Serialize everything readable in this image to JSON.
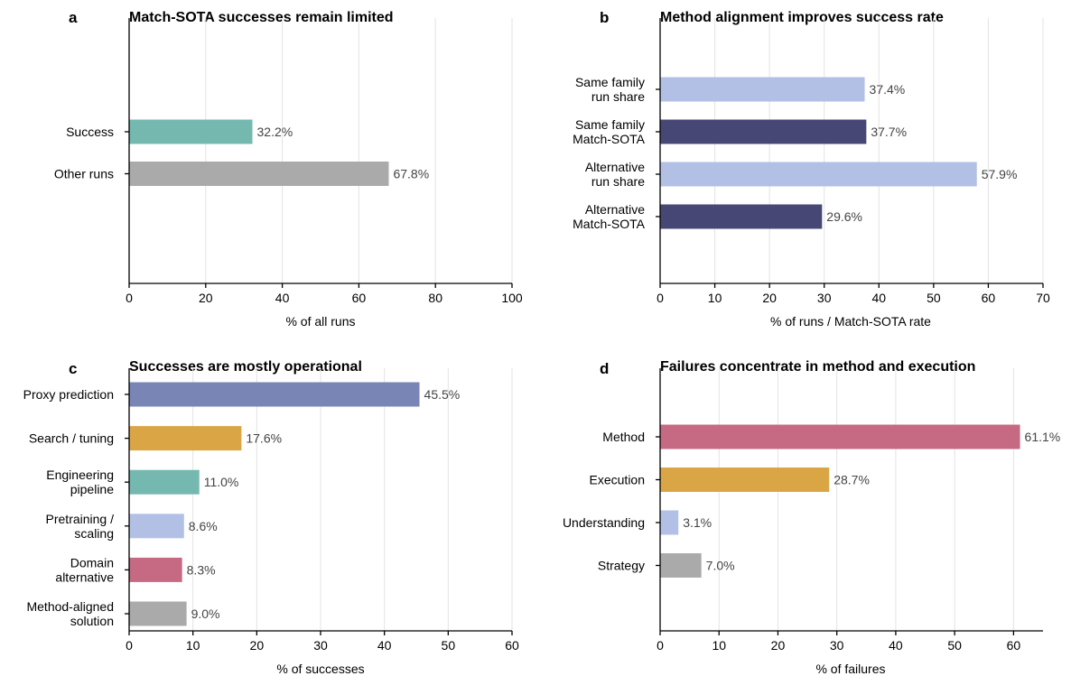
{
  "chart_data": [
    {
      "type": "bar",
      "orientation": "horizontal",
      "panel": "a",
      "title": "Match-SOTA successes remain limited",
      "xlabel": "% of all runs",
      "ylabel": "",
      "xlim": [
        0,
        100
      ],
      "xticks": [
        0,
        20,
        40,
        60,
        80,
        100
      ],
      "grid": "vertical",
      "categories": [
        [
          "Success"
        ],
        [
          "Other runs"
        ]
      ],
      "values": [
        32.2,
        67.8
      ],
      "value_labels": [
        "32.2%",
        "67.8%"
      ],
      "colors": [
        "#74b8b0",
        "#aaaaaa"
      ]
    },
    {
      "type": "bar",
      "orientation": "horizontal",
      "panel": "b",
      "title": "Method alignment improves success rate",
      "xlabel": "% of runs / Match-SOTA rate",
      "ylabel": "",
      "xlim": [
        0,
        70
      ],
      "xticks": [
        0,
        10,
        20,
        30,
        40,
        50,
        60,
        70
      ],
      "grid": "vertical",
      "categories": [
        [
          "Same family",
          "run share"
        ],
        [
          "Same family",
          "Match-SOTA"
        ],
        [
          "Alternative",
          "run share"
        ],
        [
          "Alternative",
          "Match-SOTA"
        ]
      ],
      "values": [
        37.4,
        37.7,
        57.9,
        29.6
      ],
      "value_labels": [
        "37.4%",
        "37.7%",
        "57.9%",
        "29.6%"
      ],
      "colors": [
        "#b3c0e6",
        "#474775",
        "#b3c0e6",
        "#474775"
      ]
    },
    {
      "type": "bar",
      "orientation": "horizontal",
      "panel": "c",
      "title": "Successes are mostly operational",
      "xlabel": "% of successes",
      "ylabel": "",
      "xlim": [
        0,
        60
      ],
      "xticks": [
        0,
        10,
        20,
        30,
        40,
        50,
        60
      ],
      "grid": "vertical",
      "categories": [
        [
          "Proxy prediction"
        ],
        [
          "Search / tuning"
        ],
        [
          "Engineering",
          "pipeline"
        ],
        [
          "Pretraining /",
          "scaling"
        ],
        [
          "Domain",
          "alternative"
        ],
        [
          "Method-aligned",
          "solution"
        ]
      ],
      "values": [
        45.5,
        17.6,
        11.0,
        8.6,
        8.3,
        9.0
      ],
      "value_labels": [
        "45.5%",
        "17.6%",
        "11.0%",
        "8.6%",
        "8.3%",
        "9.0%"
      ],
      "colors": [
        "#7986b5",
        "#daa545",
        "#74b8b0",
        "#b3c0e6",
        "#c56a82",
        "#aaaaaa"
      ]
    },
    {
      "type": "bar",
      "orientation": "horizontal",
      "panel": "d",
      "title": "Failures concentrate in method and execution",
      "xlabel": "% of failures",
      "ylabel": "",
      "xlim": [
        0,
        65
      ],
      "xticks": [
        0,
        10,
        20,
        30,
        40,
        50,
        60
      ],
      "grid": "vertical",
      "categories": [
        [
          "Method"
        ],
        [
          "Execution"
        ],
        [
          "Understanding"
        ],
        [
          "Strategy"
        ]
      ],
      "values": [
        61.1,
        28.7,
        3.1,
        7.0
      ],
      "value_labels": [
        "61.1%",
        "28.7%",
        "3.1%",
        "7.0%"
      ],
      "colors": [
        "#c56a82",
        "#daa545",
        "#b3c0e6",
        "#aaaaaa"
      ]
    }
  ]
}
